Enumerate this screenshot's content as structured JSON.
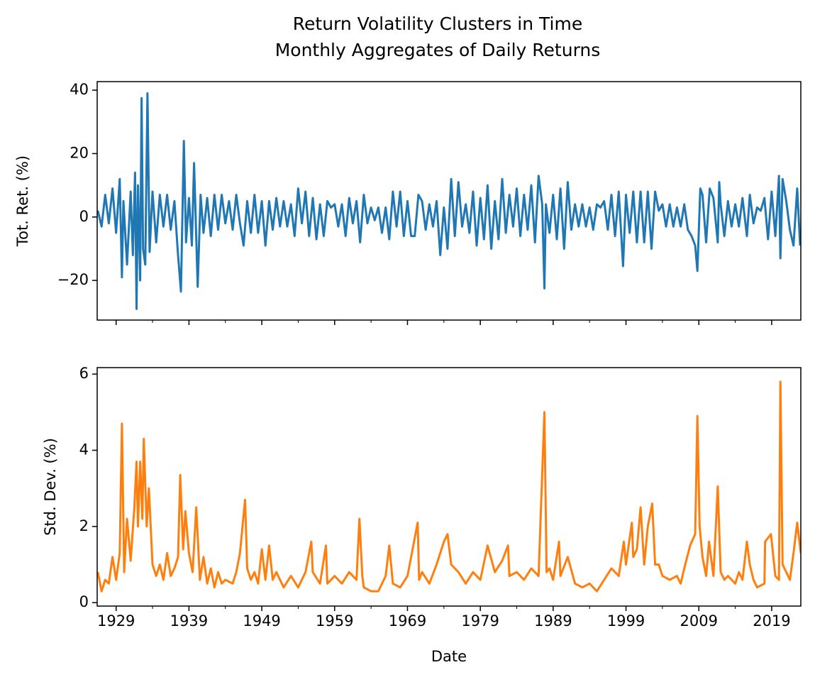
{
  "figure": {
    "title": "Return Volatility Clusters in Time",
    "subtitle": "Monthly Aggregates of Daily Returns"
  },
  "chart_data": [
    {
      "type": "line",
      "ylabel": "Tot. Ret. (%)",
      "color": "#1f77b4",
      "xlim": [
        1926.4,
        2023.0
      ],
      "xticks": [
        1929,
        1939,
        1949,
        1959,
        1969,
        1979,
        1989,
        1999,
        2009,
        2019
      ],
      "xminorticks": [
        1934,
        1944,
        1954,
        1964,
        1974,
        1984,
        1994,
        2004,
        2014
      ],
      "xtick_labels": false,
      "ylim": [
        -32.5,
        42.7
      ],
      "yticks": [
        {
          "value": -20,
          "label": "−20"
        },
        0,
        20,
        40
      ],
      "x": [
        1926.5,
        1927,
        1927.5,
        1928,
        1928.5,
        1929,
        1929.5,
        1929.8,
        1930,
        1930.5,
        1931,
        1931.3,
        1931.6,
        1931.8,
        1932,
        1932.3,
        1932.5,
        1932.7,
        1933,
        1933.3,
        1933.6,
        1934,
        1934.5,
        1935,
        1935.5,
        1936,
        1936.5,
        1937,
        1937.5,
        1937.9,
        1938.3,
        1938.6,
        1939,
        1939.4,
        1939.7,
        1940.2,
        1940.6,
        1941,
        1941.5,
        1942,
        1942.5,
        1943,
        1943.5,
        1944,
        1944.5,
        1945,
        1945.5,
        1946,
        1946.5,
        1947,
        1947.5,
        1948,
        1948.5,
        1949,
        1949.5,
        1950,
        1950.5,
        1951,
        1951.5,
        1952,
        1952.5,
        1953,
        1953.5,
        1954,
        1954.5,
        1955,
        1955.5,
        1956,
        1956.5,
        1957,
        1957.5,
        1958,
        1958.5,
        1959,
        1959.5,
        1960,
        1960.5,
        1961,
        1961.5,
        1962,
        1962.5,
        1963,
        1963.5,
        1964,
        1964.5,
        1965,
        1965.5,
        1966,
        1966.5,
        1967,
        1967.5,
        1968,
        1968.5,
        1969,
        1969.5,
        1970,
        1970.5,
        1971,
        1971.5,
        1972,
        1972.5,
        1973,
        1973.5,
        1974,
        1974.5,
        1975,
        1975.5,
        1976,
        1976.5,
        1977,
        1977.5,
        1978,
        1978.5,
        1979,
        1979.5,
        1980,
        1980.5,
        1981,
        1981.5,
        1982,
        1982.5,
        1983,
        1983.5,
        1984,
        1984.5,
        1985,
        1985.5,
        1986,
        1986.5,
        1987,
        1987.5,
        1987.8,
        1988,
        1988.5,
        1989,
        1989.5,
        1990,
        1990.5,
        1991,
        1991.5,
        1992,
        1992.5,
        1993,
        1993.5,
        1994,
        1994.5,
        1995,
        1995.5,
        1996,
        1996.5,
        1997,
        1997.5,
        1998,
        1998.6,
        1999,
        1999.5,
        2000,
        2000.5,
        2001,
        2001.5,
        2002,
        2002.5,
        2003,
        2003.5,
        2004,
        2004.5,
        2005,
        2005.5,
        2006,
        2006.5,
        2007,
        2007.5,
        2008,
        2008.5,
        2008.8,
        2009.2,
        2009.5,
        2010,
        2010.5,
        2011,
        2011.6,
        2011.8,
        2012,
        2012.5,
        2013,
        2013.5,
        2014,
        2014.5,
        2015,
        2015.6,
        2016,
        2016.5,
        2017,
        2017.5,
        2018,
        2018.5,
        2019,
        2019.5,
        2020,
        2020.2,
        2020.5,
        2021,
        2021.5,
        2022,
        2022.5,
        2022.9
      ],
      "values": [
        2,
        -3,
        7,
        -2,
        9,
        -5,
        12,
        -19,
        5,
        -15,
        8,
        -12,
        14,
        -29,
        10,
        -20,
        37.5,
        -10,
        -15,
        39,
        -11,
        8,
        -8,
        7,
        -3,
        7,
        -4,
        5,
        -12,
        -23.5,
        24,
        -8,
        6,
        -9,
        17,
        -22,
        7,
        -5,
        6,
        -6,
        7,
        -4,
        7,
        -2,
        5,
        -4,
        7,
        -2,
        -9,
        5,
        -5,
        7,
        -5,
        5,
        -9,
        5,
        -4,
        6,
        -3,
        5,
        -3,
        4,
        -6,
        9,
        -2,
        8,
        -6,
        6,
        -7,
        4,
        -6,
        5,
        3,
        4,
        -3,
        4,
        -6,
        6,
        -2,
        5,
        -8,
        7,
        -2,
        3,
        -1,
        3,
        -5,
        3,
        -7,
        8,
        -3,
        8,
        -6,
        5,
        -6,
        -6,
        7,
        5,
        -4,
        4,
        -3,
        5,
        -12,
        3,
        -10,
        12,
        -6,
        11,
        -3,
        4,
        -5,
        8,
        -9,
        6,
        -7,
        10,
        -10,
        5,
        -7,
        12,
        -5,
        7,
        -3,
        9,
        -6,
        7,
        -4,
        10,
        -8,
        13,
        4,
        -22.5,
        4,
        -5,
        7,
        -7,
        9,
        -10,
        11,
        -4,
        4,
        -3,
        4,
        -3,
        3,
        -4,
        4,
        3,
        5,
        -4,
        7,
        -6,
        8,
        -15.5,
        7,
        -5,
        8,
        -8,
        8,
        -8,
        8,
        -10,
        8,
        2,
        4,
        -3,
        4,
        -3,
        3,
        -3,
        4,
        -4,
        -6,
        -9,
        -17,
        9,
        7,
        -8,
        9,
        6,
        -8,
        11,
        4,
        -6,
        5,
        -3,
        4,
        -3,
        6,
        -6,
        7,
        -2,
        3,
        2,
        6,
        -7,
        8,
        -6,
        13,
        -13,
        12,
        5,
        -4,
        -9,
        9,
        -9
      ]
    },
    {
      "type": "line",
      "ylabel": "Std. Dev. (%)",
      "xlabel": "Date",
      "color": "#ff7f0e",
      "xlim": [
        1926.4,
        2023.0
      ],
      "xticks": [
        1929,
        1939,
        1949,
        1959,
        1969,
        1979,
        1989,
        1999,
        2009,
        2019
      ],
      "xminorticks": [
        1934,
        1944,
        1954,
        1964,
        1974,
        1984,
        1994,
        2004,
        2014
      ],
      "xtick_labels": true,
      "ylim": [
        -0.09,
        6.17
      ],
      "yticks": [
        0,
        2,
        4,
        6
      ],
      "x": [
        1926.5,
        1927,
        1927.5,
        1928,
        1928.5,
        1929,
        1929.5,
        1929.8,
        1930.1,
        1930.5,
        1931,
        1931.5,
        1931.8,
        1932,
        1932.3,
        1932.6,
        1932.8,
        1933.2,
        1933.5,
        1934,
        1934.5,
        1935,
        1935.5,
        1936,
        1936.5,
        1937,
        1937.5,
        1937.8,
        1938.2,
        1938.5,
        1939,
        1939.5,
        1940,
        1940.5,
        1941,
        1941.5,
        1942,
        1942.5,
        1943,
        1943.5,
        1944,
        1945,
        1945.5,
        1946,
        1946.7,
        1947,
        1947.5,
        1948,
        1948.5,
        1949,
        1949.5,
        1950,
        1950.5,
        1951,
        1952,
        1953,
        1954,
        1955,
        1955.8,
        1956,
        1957,
        1957.8,
        1958,
        1959,
        1960,
        1961,
        1962,
        1962.4,
        1962.8,
        1963,
        1964,
        1965,
        1966,
        1966.5,
        1967,
        1968,
        1969,
        1970.4,
        1970.6,
        1971,
        1972,
        1973,
        1974,
        1974.5,
        1975,
        1976,
        1977,
        1978,
        1979,
        1980,
        1981,
        1982,
        1982.8,
        1983,
        1984,
        1985,
        1986,
        1987,
        1987.8,
        1988.1,
        1988.5,
        1989,
        1989.8,
        1990,
        1991,
        1992,
        1993,
        1994,
        1995,
        1996,
        1997,
        1998,
        1998.7,
        1999,
        1999.8,
        2000,
        2000.5,
        2001,
        2001.5,
        2002,
        2002.6,
        2003,
        2003.5,
        2004,
        2005,
        2006,
        2006.5,
        2007,
        2007.8,
        2008.5,
        2008.8,
        2009.1,
        2009.5,
        2010,
        2010.4,
        2011,
        2011.6,
        2012,
        2012.5,
        2013,
        2014,
        2014.5,
        2015,
        2015.6,
        2016,
        2016.5,
        2017,
        2018,
        2018.1,
        2018.9,
        2019.5,
        2020,
        2020.2,
        2020.5,
        2021,
        2021.5,
        2022,
        2022.5,
        2023
      ],
      "values": [
        0.8,
        0.3,
        0.6,
        0.5,
        1.2,
        0.6,
        1.3,
        4.7,
        0.8,
        2.2,
        1.1,
        2.5,
        3.7,
        2.0,
        3.7,
        2.2,
        4.3,
        2.0,
        3.0,
        1.0,
        0.7,
        1.0,
        0.6,
        1.3,
        0.7,
        0.9,
        1.2,
        3.35,
        1.4,
        2.4,
        1.3,
        0.8,
        2.5,
        0.6,
        1.2,
        0.5,
        0.9,
        0.4,
        0.8,
        0.5,
        0.6,
        0.5,
        0.8,
        1.3,
        2.7,
        0.9,
        0.6,
        0.8,
        0.5,
        1.4,
        0.6,
        1.5,
        0.6,
        0.8,
        0.4,
        0.7,
        0.4,
        0.8,
        1.6,
        0.8,
        0.5,
        1.5,
        0.5,
        0.7,
        0.5,
        0.8,
        0.6,
        2.2,
        0.7,
        0.4,
        0.3,
        0.3,
        0.7,
        1.5,
        0.5,
        0.4,
        0.7,
        2.1,
        0.6,
        0.8,
        0.5,
        1.0,
        1.6,
        1.8,
        1.0,
        0.8,
        0.5,
        0.8,
        0.6,
        1.5,
        0.8,
        1.1,
        1.5,
        0.7,
        0.8,
        0.6,
        0.9,
        0.7,
        5.0,
        0.8,
        0.9,
        0.6,
        1.6,
        0.7,
        1.2,
        0.5,
        0.4,
        0.5,
        0.3,
        0.6,
        0.9,
        0.7,
        1.6,
        1.0,
        2.1,
        1.2,
        1.4,
        2.5,
        1.0,
        2.0,
        2.6,
        1.0,
        1.0,
        0.7,
        0.6,
        0.7,
        0.5,
        0.9,
        1.5,
        1.8,
        4.9,
        2.0,
        1.2,
        0.7,
        1.6,
        0.7,
        3.05,
        0.8,
        0.6,
        0.7,
        0.5,
        0.8,
        0.6,
        1.6,
        1.0,
        0.6,
        0.4,
        0.5,
        1.6,
        1.8,
        0.7,
        0.6,
        5.8,
        1.0,
        0.8,
        0.6,
        1.3,
        2.1,
        1.3
      ]
    }
  ]
}
